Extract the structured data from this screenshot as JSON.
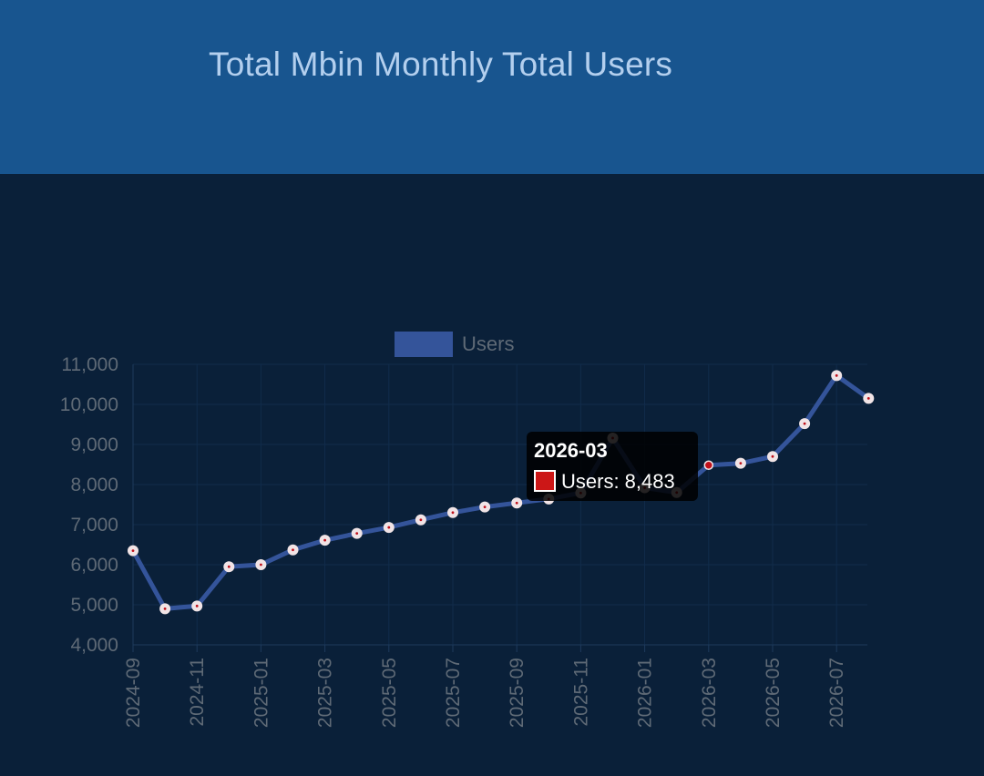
{
  "header": {
    "title": "Total Mbin Monthly Total Users"
  },
  "colors": {
    "header_bg": "#18558f",
    "page_bg": "#0a2039",
    "line": "#34549a",
    "point_fill": "#f1e4e6",
    "point_center": "#c0101a",
    "tooltip_swatch": "#cc1717"
  },
  "chart_data": {
    "type": "line",
    "title": "Total Mbin Monthly Total Users",
    "xlabel": "",
    "ylabel": "",
    "x": [
      "2024-09",
      "2024-10",
      "2024-11",
      "2024-12",
      "2025-01",
      "2025-02",
      "2025-03",
      "2025-04",
      "2025-05",
      "2025-06",
      "2025-07",
      "2025-08",
      "2025-09",
      "2025-10",
      "2025-11",
      "2025-12",
      "2026-01",
      "2026-02",
      "2026-03",
      "2026-04",
      "2026-05",
      "2026-06",
      "2026-07",
      "2026-08"
    ],
    "x_tick_labels": [
      "2024-09",
      "2024-11",
      "2025-01",
      "2025-03",
      "2025-05",
      "2025-07",
      "2025-09",
      "2025-11",
      "2026-01",
      "2026-03",
      "2026-05",
      "2026-07"
    ],
    "series": [
      {
        "name": "Users",
        "values": [
          6350,
          4900,
          4970,
          5950,
          6000,
          6370,
          6610,
          6780,
          6930,
          7120,
          7300,
          7440,
          7540,
          7640,
          7790,
          9160,
          7920,
          7800,
          8483,
          8530,
          8700,
          9520,
          10720,
          10150
        ]
      }
    ],
    "ylim": [
      4000,
      11000
    ],
    "y_ticks": [
      "11,000",
      "10,000",
      "9,000",
      "8,000",
      "7,000",
      "6,000",
      "5,000",
      "4,000"
    ],
    "y_tick_values": [
      11000,
      10000,
      9000,
      8000,
      7000,
      6000,
      5000,
      4000
    ],
    "grid": true,
    "legend": {
      "position": "top",
      "label": "Users"
    },
    "tooltip": {
      "title": "2026-03",
      "body": "Users: 8,483",
      "active_index": 18
    }
  }
}
